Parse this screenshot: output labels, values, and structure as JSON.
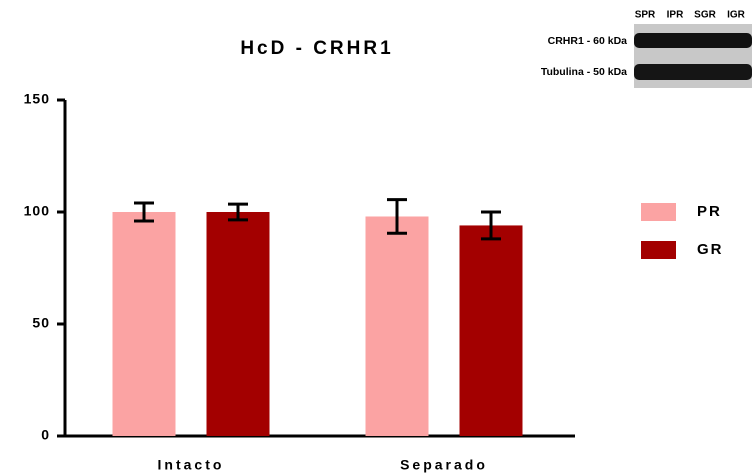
{
  "chart_data": {
    "type": "bar",
    "title": "HcD - CRHR1",
    "categories": [
      "Intacto",
      "Separado"
    ],
    "series": [
      {
        "name": "PR",
        "color": "#fba3a3",
        "values": [
          100,
          98
        ],
        "errors": [
          4,
          7.5
        ]
      },
      {
        "name": "GR",
        "color": "#a30000",
        "values": [
          100,
          94
        ],
        "errors": [
          3.5,
          6
        ]
      }
    ],
    "ylim": [
      0,
      150
    ],
    "yticks": [
      0,
      50,
      100,
      150
    ],
    "grid": false,
    "legend": "right",
    "blot": {
      "lanes": [
        "SPR",
        "IPR",
        "SGR",
        "IGR"
      ],
      "rows": [
        "CRHR1 - 60 kDa",
        "Tubulina - 50 kDa"
      ]
    }
  }
}
